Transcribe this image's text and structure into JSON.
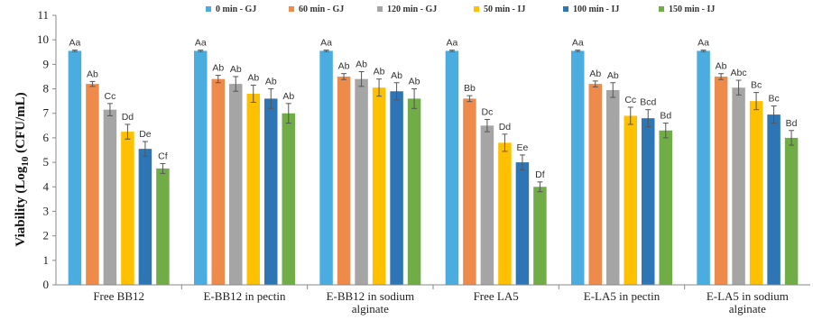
{
  "chart_data": {
    "type": "bar",
    "title": "",
    "ylabel_prefix": "Viability (Log",
    "ylabel_sub": "10",
    "ylabel_suffix": " (CFU/mL)",
    "ylim": [
      0,
      11
    ],
    "yticks": [
      0,
      1,
      2,
      3,
      4,
      5,
      6,
      7,
      8,
      9,
      10,
      11
    ],
    "grid": false,
    "legend_position": "top",
    "categories": [
      [
        "Free BB12"
      ],
      [
        "E-BB12 in pectin"
      ],
      [
        "E-BB12 in sodium",
        "alginate"
      ],
      [
        "Free LA5"
      ],
      [
        "E-LA5 in pectin"
      ],
      [
        "E-LA5 in sodium",
        "alginate"
      ]
    ],
    "series": [
      {
        "name": "0 min - GJ",
        "color": "#4BACE0",
        "values": [
          9.55,
          9.55,
          9.55,
          9.55,
          9.55,
          9.55
        ],
        "errors": [
          0.03,
          0.03,
          0.03,
          0.03,
          0.03,
          0.03
        ],
        "labels": [
          "Aa",
          "Aa",
          "Aa",
          "Aa",
          "Aa",
          "Aa"
        ]
      },
      {
        "name": "60 min - GJ",
        "color": "#EE8A4A",
        "values": [
          8.2,
          8.4,
          8.5,
          7.6,
          8.2,
          8.5
        ],
        "errors": [
          0.1,
          0.15,
          0.12,
          0.12,
          0.12,
          0.12
        ],
        "labels": [
          "Ab",
          "Ab",
          "Ab",
          "Bb",
          "Ab",
          "Ab"
        ]
      },
      {
        "name": "120 min - GJ",
        "color": "#A5A5A5",
        "values": [
          7.15,
          8.2,
          8.4,
          6.5,
          7.95,
          8.05
        ],
        "errors": [
          0.25,
          0.3,
          0.3,
          0.25,
          0.3,
          0.3
        ],
        "labels": [
          "Cc",
          "Ab",
          "Ab",
          "Dc",
          "Ab",
          "Abc"
        ]
      },
      {
        "name": "50 min - IJ",
        "color": "#FFC000",
        "values": [
          6.25,
          7.8,
          8.05,
          5.8,
          6.9,
          7.5
        ],
        "errors": [
          0.3,
          0.35,
          0.35,
          0.35,
          0.35,
          0.35
        ],
        "labels": [
          "Dd",
          "Ab",
          "Ab",
          "Dd",
          "Cc",
          "Bc"
        ]
      },
      {
        "name": "100 min - IJ",
        "color": "#2E75B6",
        "values": [
          5.55,
          7.6,
          7.9,
          5.0,
          6.8,
          6.95
        ],
        "errors": [
          0.3,
          0.4,
          0.35,
          0.3,
          0.35,
          0.35
        ],
        "labels": [
          "De",
          "Ab",
          "Ab",
          "Ee",
          "Bcd",
          "Bc"
        ]
      },
      {
        "name": "150 min - IJ",
        "color": "#70AD47",
        "values": [
          4.75,
          7.0,
          7.6,
          4.0,
          6.3,
          6.0
        ],
        "errors": [
          0.2,
          0.4,
          0.4,
          0.2,
          0.3,
          0.3
        ],
        "labels": [
          "Cf",
          "Ab",
          "Ab",
          "Df",
          "Bd",
          "Bd"
        ]
      }
    ]
  }
}
